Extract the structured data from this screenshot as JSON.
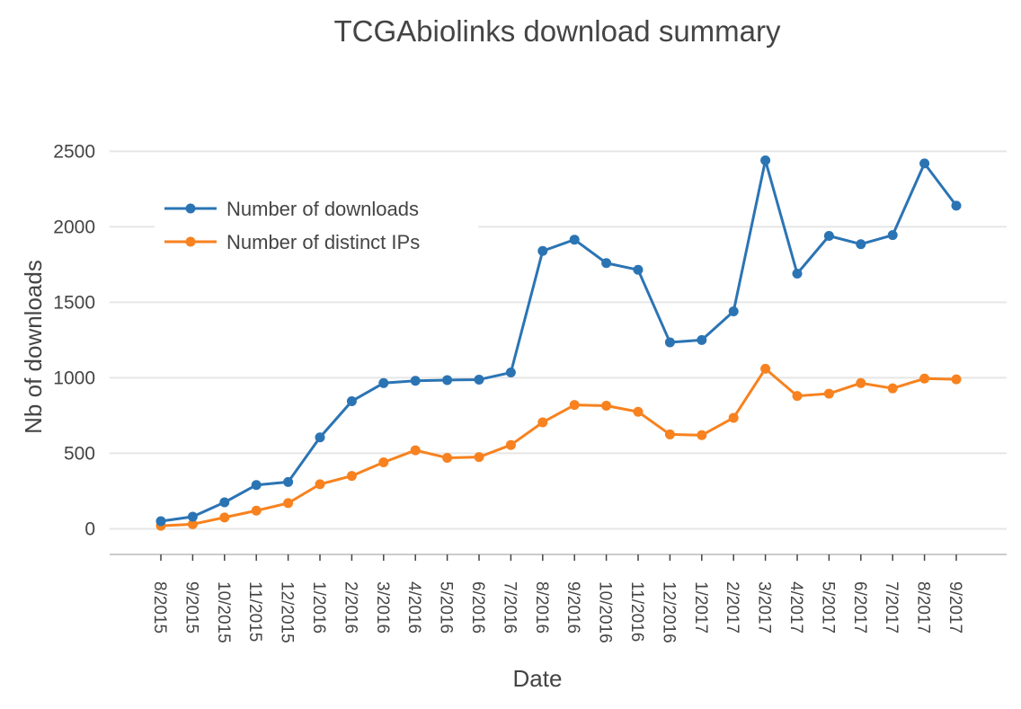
{
  "chart_data": {
    "type": "line",
    "title": "TCGAbiolinks download summary",
    "xlabel": "Date",
    "ylabel": "Nb of downloads",
    "categories": [
      "8/2015",
      "9/2015",
      "10/2015",
      "11/2015",
      "12/2015",
      "1/2016",
      "2/2016",
      "3/2016",
      "4/2016",
      "5/2016",
      "6/2016",
      "7/2016",
      "8/2016",
      "9/2016",
      "10/2016",
      "11/2016",
      "12/2016",
      "1/2017",
      "2/2017",
      "3/2017",
      "4/2017",
      "5/2017",
      "6/2017",
      "7/2017",
      "8/2017",
      "9/2017"
    ],
    "series": [
      {
        "name": "Number of downloads",
        "color": "#2b74b4",
        "values": [
          50,
          80,
          175,
          290,
          310,
          605,
          845,
          965,
          980,
          985,
          988,
          1035,
          1840,
          1915,
          1760,
          1715,
          1235,
          1250,
          1440,
          2440,
          1690,
          1940,
          1885,
          1945,
          2420,
          2140
        ]
      },
      {
        "name": "Number of distinct IPs",
        "color": "#f7821f",
        "values": [
          20,
          30,
          75,
          120,
          170,
          295,
          350,
          440,
          520,
          470,
          475,
          555,
          705,
          820,
          815,
          775,
          625,
          620,
          735,
          1060,
          880,
          895,
          965,
          930,
          995,
          990
        ]
      }
    ],
    "yticks": [
      "0",
      "500",
      "1000",
      "1500",
      "2000",
      "2500"
    ],
    "ylim": [
      -170,
      2550
    ],
    "grid": true,
    "legend_position": "top-left"
  }
}
